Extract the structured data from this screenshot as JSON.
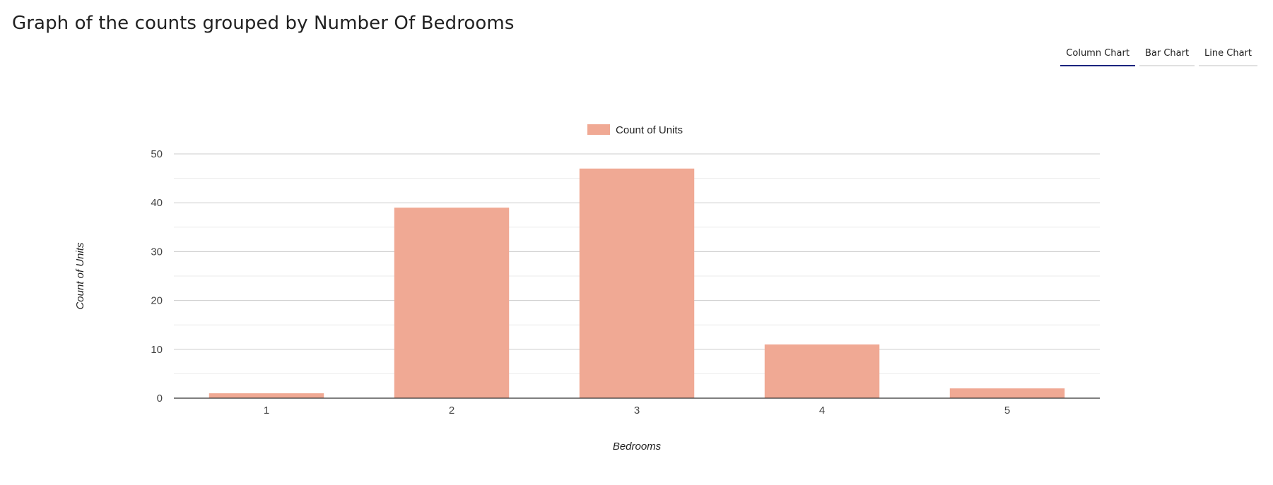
{
  "page": {
    "title": "Graph of the counts grouped by Number Of Bedrooms"
  },
  "tabs": [
    {
      "label": "Column Chart",
      "active": true
    },
    {
      "label": "Bar Chart",
      "active": false
    },
    {
      "label": "Line Chart",
      "active": false
    }
  ],
  "colors": {
    "bar": "#f0a994",
    "gridline": "#cccccc",
    "minor_gridline": "#ebebeb",
    "baseline": "#333333",
    "tab_active": "#1a237e"
  },
  "chart_data": {
    "type": "bar",
    "orientation": "vertical",
    "categories": [
      "1",
      "2",
      "3",
      "4",
      "5"
    ],
    "series": [
      {
        "name": "Count of Units",
        "values": [
          1,
          39,
          47,
          11,
          2
        ]
      }
    ],
    "xlabel": "Bedrooms",
    "ylabel": "Count of Units",
    "ylim": [
      0,
      50
    ],
    "yticks": [
      0,
      10,
      20,
      30,
      40,
      50
    ],
    "minor_gridlines": true,
    "legend_position": "top",
    "grid": true
  }
}
